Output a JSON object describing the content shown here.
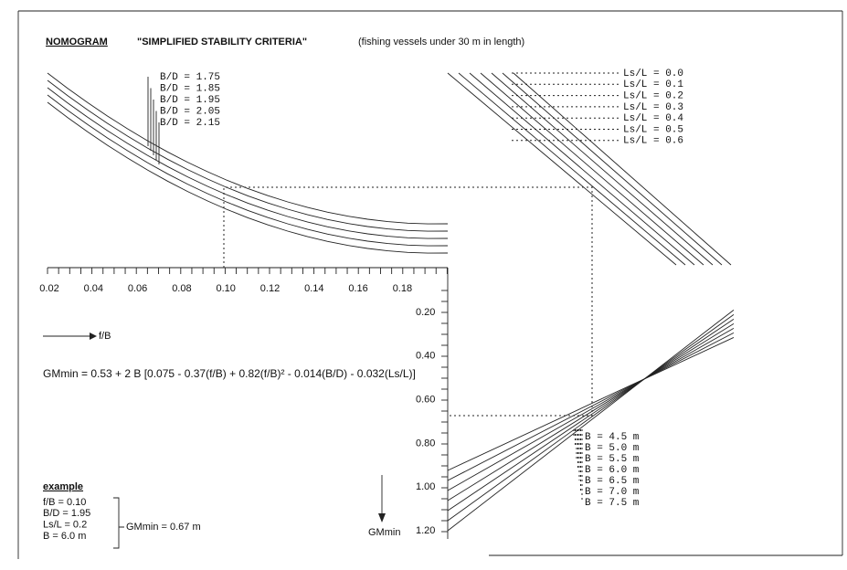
{
  "header": {
    "label": "NOMOGRAM",
    "title": "\"SIMPLIFIED STABILITY CRITERIA\"",
    "subtitle": "(fishing vessels under 30 m in length)"
  },
  "bd_curves": {
    "labels": [
      "B/D = 1.75",
      "B/D = 1.85",
      "B/D = 1.95",
      "B/D = 2.05",
      "B/D = 2.15"
    ]
  },
  "ls_lines": {
    "labels": [
      "Ls/L = 0.0",
      "Ls/L = 0.1",
      "Ls/L = 0.2",
      "Ls/L = 0.3",
      "Ls/L = 0.4",
      "Ls/L = 0.5",
      "Ls/L = 0.6"
    ]
  },
  "f_axis": {
    "ticks": [
      "0.02",
      "0.04",
      "0.06",
      "0.08",
      "0.10",
      "0.12",
      "0.14",
      "0.16",
      "0.18"
    ],
    "label": "f/B"
  },
  "gm_axis": {
    "ticks": [
      "0.20",
      "0.40",
      "0.60",
      "0.80",
      "1.00",
      "1.20"
    ],
    "label": "GMmin"
  },
  "b_lines": {
    "labels": [
      "B = 4.5 m",
      "B = 5.0 m",
      "B = 5.5 m",
      "B = 6.0 m",
      "B = 6.5 m",
      "B = 7.0 m",
      "B = 7.5 m"
    ]
  },
  "formula": "GMmin = 0.53 + 2 B [0.075 - 0.37(f/B) + 0.82(f/B)² - 0.014(B/D) - 0.032(Ls/L)]",
  "example": {
    "title": "example",
    "inputs": [
      "f/B = 0.10",
      "B/D = 1.95",
      "Ls/L = 0.2",
      "B = 6.0 m"
    ],
    "result": "GMmin = 0.67 m"
  }
}
